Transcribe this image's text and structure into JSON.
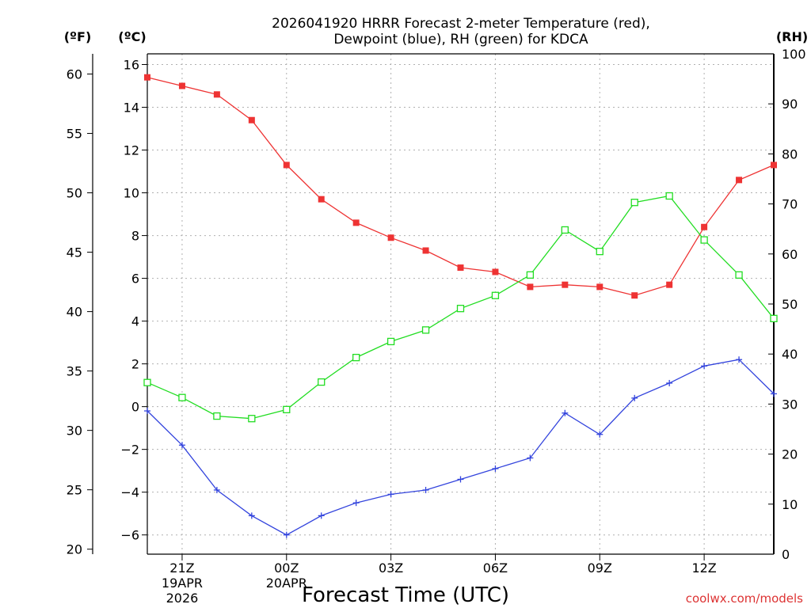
{
  "chart_data": {
    "type": "line",
    "title_line1": "2026041920 HRRR Forecast 2-meter Temperature (red),",
    "title_line2": "Dewpoint (blue), RH (green) for KDCA",
    "xlabel": "Forecast Time (UTC)",
    "credit": "coolwx.com/models",
    "unit_f": "(ºF)",
    "unit_c": "(ºC)",
    "unit_rh": "(RH)",
    "x_hours": [
      0,
      1,
      2,
      3,
      4,
      5,
      6,
      7,
      8,
      9,
      10,
      11,
      12,
      13,
      14,
      15,
      16,
      17,
      18
    ],
    "x_ticks": [
      {
        "hour": 1,
        "label": "21Z",
        "sub1": "19APR",
        "sub2": "2026"
      },
      {
        "hour": 4,
        "label": "00Z",
        "sub1": "20APR",
        "sub2": ""
      },
      {
        "hour": 7,
        "label": "03Z",
        "sub1": "",
        "sub2": ""
      },
      {
        "hour": 10,
        "label": "06Z",
        "sub1": "",
        "sub2": ""
      },
      {
        "hour": 13,
        "label": "09Z",
        "sub1": "",
        "sub2": ""
      },
      {
        "hour": 16,
        "label": "12Z",
        "sub1": "",
        "sub2": ""
      }
    ],
    "c_ticks": [
      "−6",
      "−4",
      "−2",
      "0",
      "2",
      "4",
      "6",
      "8",
      "10",
      "12",
      "14",
      "16"
    ],
    "c_tick_values": [
      -6,
      -4,
      -2,
      0,
      2,
      4,
      6,
      8,
      10,
      12,
      14,
      16
    ],
    "f_ticks": [
      "20",
      "25",
      "30",
      "35",
      "40",
      "45",
      "50",
      "55",
      "60"
    ],
    "f_tick_values": [
      20,
      25,
      30,
      35,
      40,
      45,
      50,
      55,
      60
    ],
    "rh_ticks": [
      "0",
      "10",
      "20",
      "30",
      "40",
      "50",
      "60",
      "70",
      "80",
      "90",
      "100"
    ],
    "rh_tick_values": [
      0,
      10,
      20,
      30,
      40,
      50,
      60,
      70,
      80,
      90,
      100
    ],
    "ylim_c": [
      -6.9,
      16.5
    ],
    "ylim_rh": [
      0,
      100
    ],
    "series": [
      {
        "name": "Temperature",
        "axis": "c",
        "color": "#ee3333",
        "marker": "filled-square",
        "values": [
          15.4,
          15.0,
          14.6,
          13.4,
          11.3,
          9.7,
          8.6,
          7.9,
          7.3,
          6.5,
          6.3,
          5.6,
          5.7,
          5.6,
          5.2,
          5.7,
          8.4,
          10.6,
          11.3
        ]
      },
      {
        "name": "Dewpoint",
        "axis": "c",
        "color": "#3344dd",
        "marker": "plus",
        "values": [
          -0.2,
          -1.8,
          -3.9,
          -5.1,
          -6.0,
          -5.1,
          -4.5,
          -4.1,
          -3.9,
          -3.4,
          -2.9,
          -2.4,
          -0.3,
          -1.3,
          0.4,
          1.1,
          1.9,
          2.2,
          0.6
        ]
      },
      {
        "name": "RH",
        "axis": "rh",
        "color": "#22dd22",
        "marker": "open-square",
        "values": [
          34.3,
          31.3,
          27.6,
          27.1,
          28.9,
          34.4,
          39.3,
          42.5,
          44.8,
          49.1,
          51.7,
          55.8,
          64.8,
          60.5,
          70.3,
          71.6,
          62.8,
          55.8,
          47.1
        ]
      }
    ]
  }
}
